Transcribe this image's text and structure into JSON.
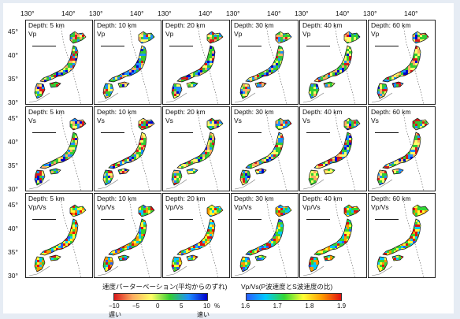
{
  "longitude_ticks": [
    "130°",
    "140°"
  ],
  "latitude_ticks": [
    "45°",
    "40°",
    "35°",
    "30°"
  ],
  "depths": [
    "Depth: 5 km",
    "Depth: 10 km",
    "Depth: 20 km",
    "Depth: 30 km",
    "Depth: 40 km",
    "Depth: 60 km"
  ],
  "rows": [
    {
      "param": "Vp",
      "panels": [
        {
          "depth": "Depth: 5 km",
          "param": "Vp"
        },
        {
          "depth": "Depth: 10 km",
          "param": "Vp"
        },
        {
          "depth": "Depth: 20 km",
          "param": "Vp"
        },
        {
          "depth": "Depth: 30 km",
          "param": "Vp"
        },
        {
          "depth": "Depth: 40 km",
          "param": "Vp"
        },
        {
          "depth": "Depth: 60 km",
          "param": "Vp"
        }
      ]
    },
    {
      "param": "Vs",
      "panels": [
        {
          "depth": "Depth: 5 km",
          "param": "Vs"
        },
        {
          "depth": "Depth: 10 km",
          "param": "Vs"
        },
        {
          "depth": "Depth: 20 km",
          "param": "Vs"
        },
        {
          "depth": "Depth: 30 km",
          "param": "Vs"
        },
        {
          "depth": "Depth: 40 km",
          "param": "Vs"
        },
        {
          "depth": "Depth: 60 km",
          "param": "Vs"
        }
      ]
    },
    {
      "param": "Vp/Vs",
      "panels": [
        {
          "depth": "Depth: 5 km",
          "param": "Vp/Vs"
        },
        {
          "depth": "Depth: 10 km",
          "param": "Vp/Vs"
        },
        {
          "depth": "Depth: 20 km",
          "param": "Vp/Vs"
        },
        {
          "depth": "Depth: 30 km",
          "param": "Vp/Vs"
        },
        {
          "depth": "Depth: 40 km",
          "param": "Vp/Vs"
        },
        {
          "depth": "Depth: 60 km",
          "param": "Vp/Vs"
        }
      ]
    }
  ],
  "colorbar_velocity": {
    "title": "速度パーターベーション(平均からのずれ)",
    "ticks": [
      "−10",
      "−5",
      "0",
      "5",
      "10"
    ],
    "unit": "%",
    "slow_label": "遅い",
    "fast_label": "速い",
    "colors": [
      "#d7191c",
      "#fdae61",
      "#ffff66",
      "#33cc33",
      "#1e90ff",
      "#0000cd"
    ]
  },
  "colorbar_ratio": {
    "title": "Vp/Vs(P波速度とS波速度の比)",
    "ticks": [
      "1.6",
      "1.7",
      "1.8",
      "1.9"
    ],
    "colors": [
      "#2a5cff",
      "#00c8ff",
      "#33d633",
      "#ffff33",
      "#ff9900",
      "#e01010"
    ]
  }
}
